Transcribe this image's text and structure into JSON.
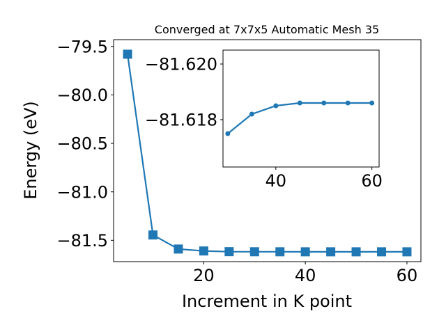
{
  "chart_data": [
    {
      "type": "line",
      "title": "Converged at 7x7x5 Automatic Mesh 35",
      "xlabel": "Increment in K point",
      "ylabel": "Energy (eV)",
      "xlim": [
        2.25,
        62.75
      ],
      "ylim": [
        -81.72,
        -79.43
      ],
      "xticks": [
        20,
        40,
        60
      ],
      "xtick_labels": [
        "20",
        "40",
        "60"
      ],
      "yticks": [
        -79.5,
        -80.0,
        -80.5,
        -81.0,
        -81.5
      ],
      "ytick_labels": [
        "−79.5",
        "−80.0",
        "−80.5",
        "−81.0",
        "−81.5"
      ],
      "grid": false,
      "marker": "square",
      "color": "#1f77b4",
      "series": [
        {
          "name": "",
          "x": [
            5,
            10,
            15,
            20,
            25,
            30,
            35,
            40,
            45,
            50,
            55,
            60
          ],
          "y": [
            -79.58,
            -81.445,
            -81.59,
            -81.61,
            -81.617,
            -81.618,
            -81.6183,
            -81.6185,
            -81.6186,
            -81.6186,
            -81.6186,
            -81.6186
          ]
        }
      ]
    },
    {
      "type": "line",
      "role": "inset",
      "title": "",
      "xlabel": "",
      "ylabel": "",
      "xlim": [
        29.0,
        61.5
      ],
      "ylim": [
        -81.6163,
        -81.6205
      ],
      "xticks": [
        40,
        60
      ],
      "xtick_labels": [
        "40",
        "60"
      ],
      "yticks": [
        -81.62,
        -81.618
      ],
      "ytick_labels": [
        "−81.620",
        "−81.618"
      ],
      "grid": false,
      "marker": "circle",
      "color": "#1f77b4",
      "series": [
        {
          "name": "",
          "x": [
            30,
            35,
            40,
            45,
            50,
            55,
            60
          ],
          "y": [
            -81.6175,
            -81.6182,
            -81.6185,
            -81.6186,
            -81.6186,
            -81.6186,
            -81.6186
          ]
        }
      ]
    }
  ]
}
